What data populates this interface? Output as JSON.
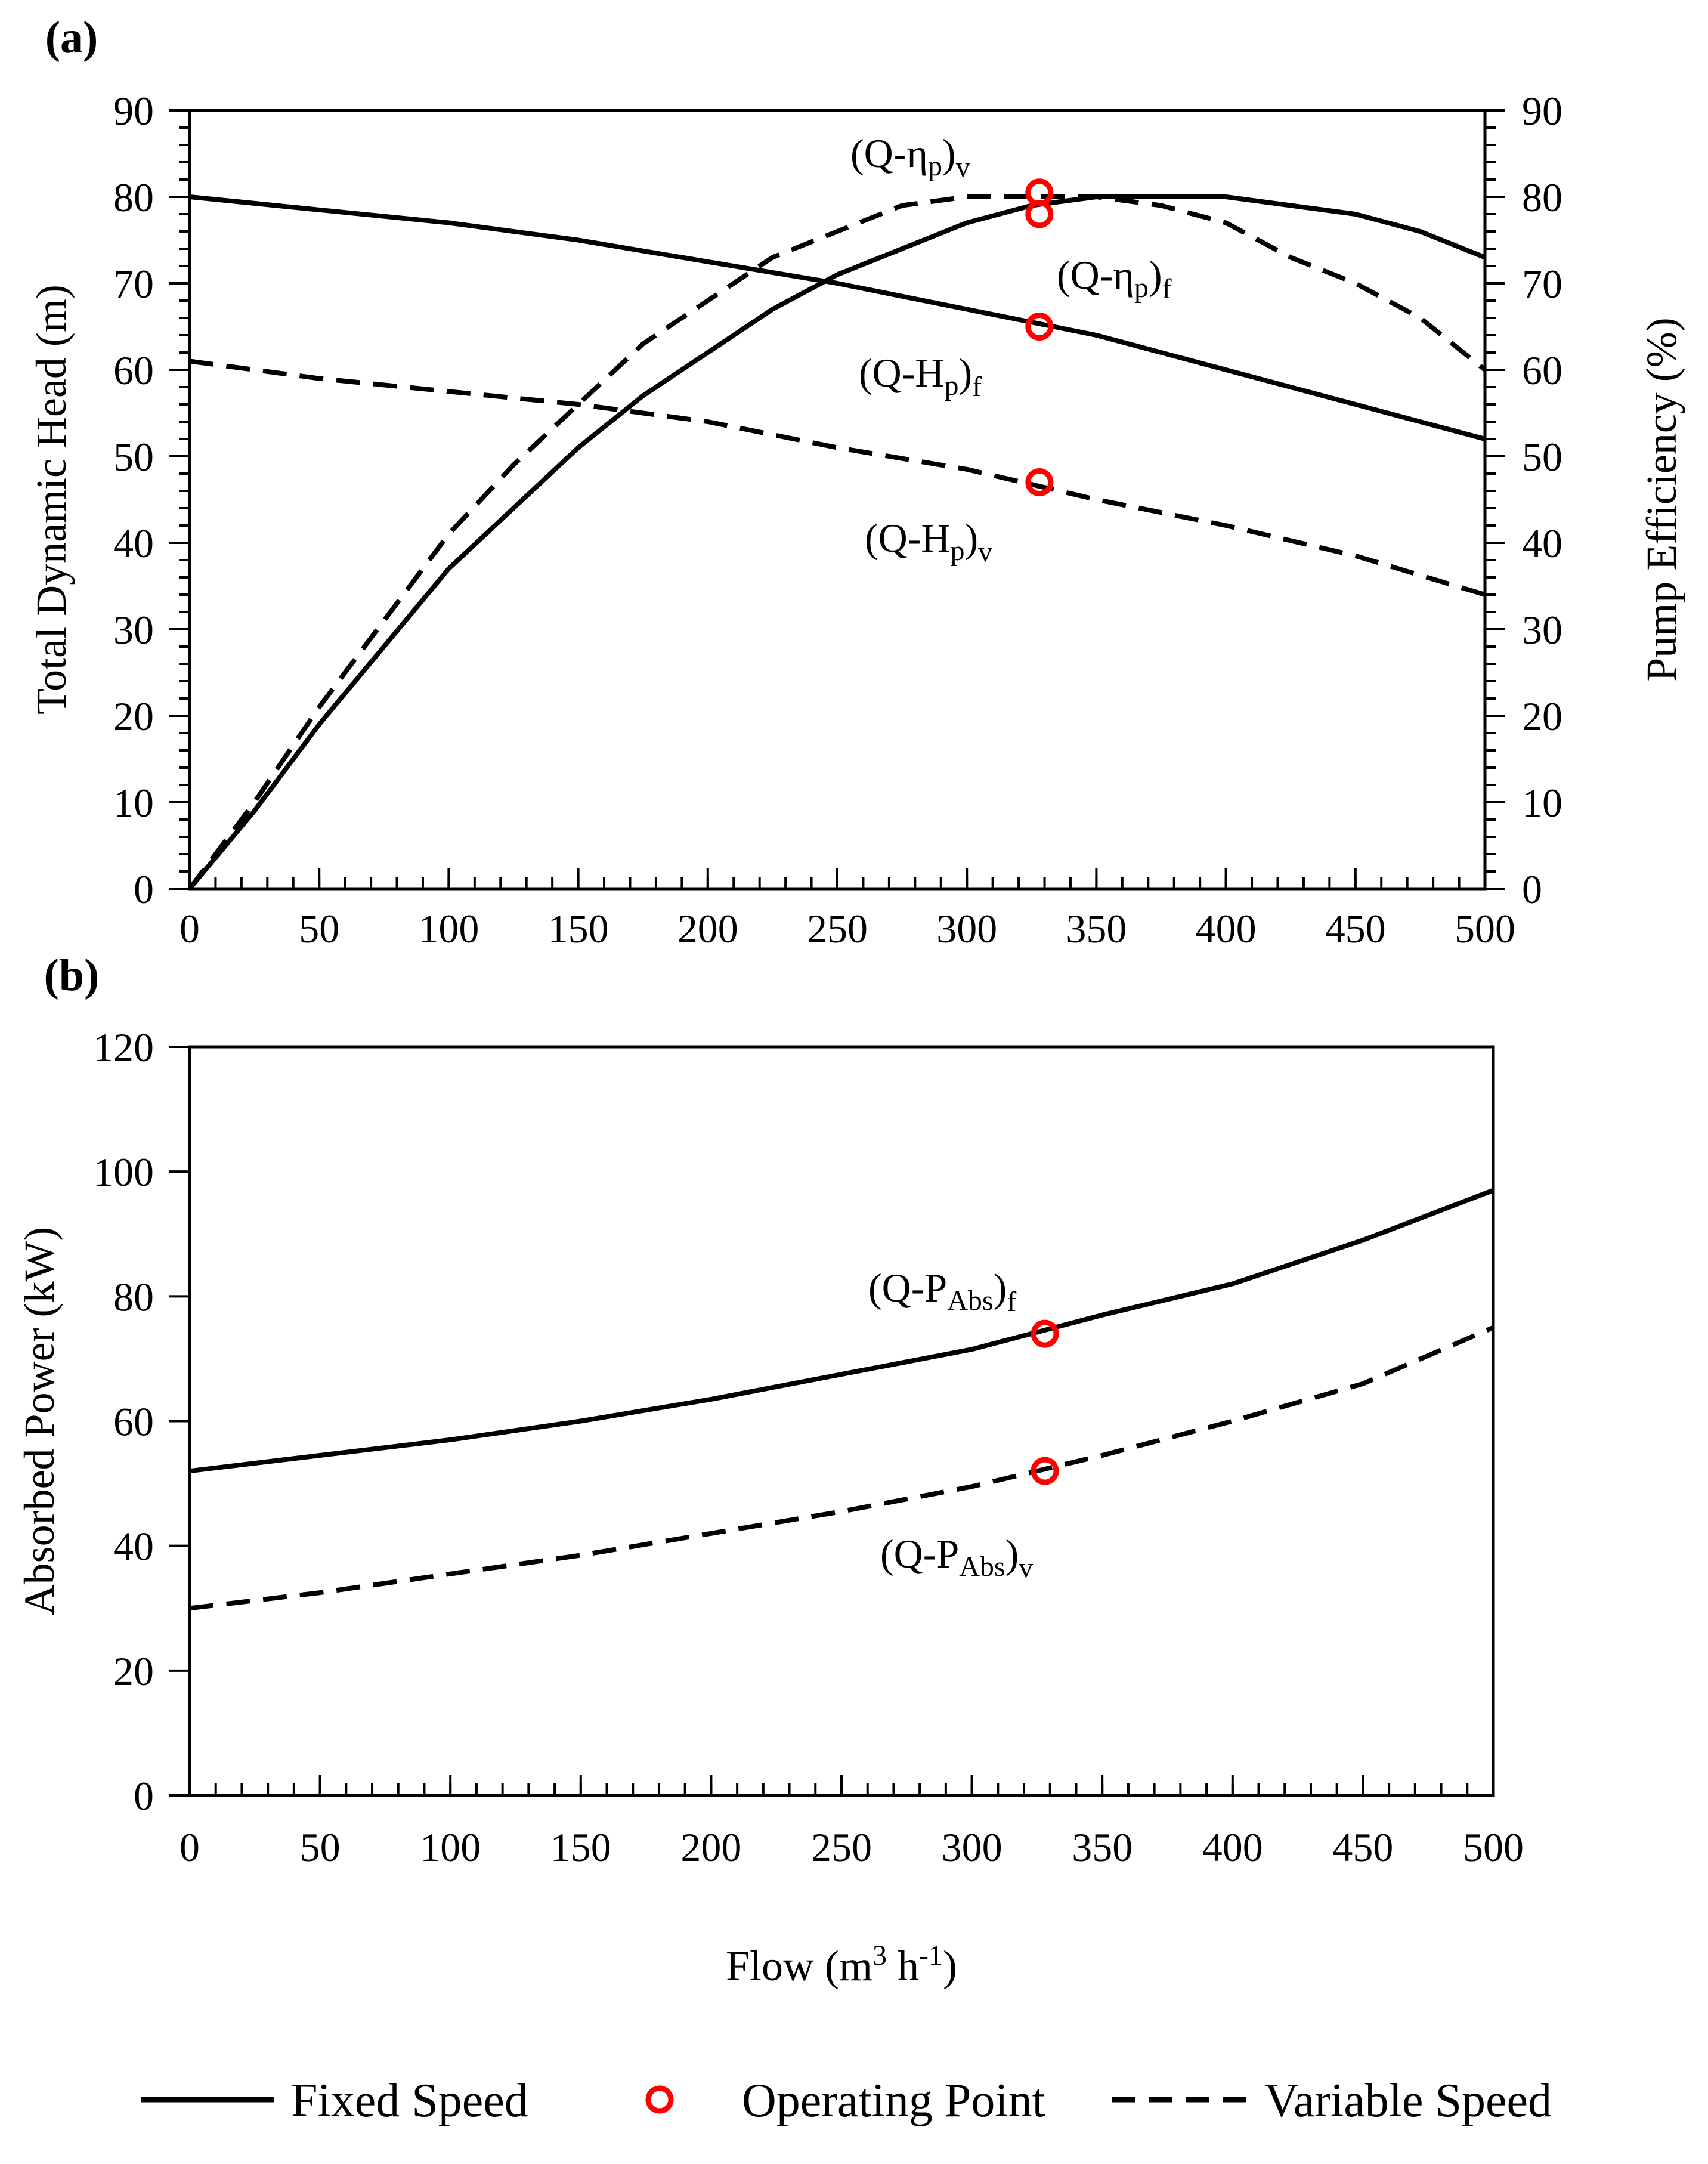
{
  "chart_data": [
    {
      "panel": "(a)",
      "type": "line",
      "title": "",
      "xlabel": "",
      "ylabel": "Total Dynamic  Head (m)",
      "y2label": "Pump Efficiency  (%)",
      "xlim": [
        0,
        500
      ],
      "ylim": [
        0,
        90
      ],
      "y2lim": [
        0,
        90
      ],
      "xticks": [
        0,
        50,
        100,
        150,
        200,
        250,
        300,
        350,
        400,
        450,
        500
      ],
      "yticks": [
        0,
        10,
        20,
        30,
        40,
        50,
        60,
        70,
        80,
        90
      ],
      "y2ticks": [
        0,
        10,
        20,
        30,
        40,
        50,
        60,
        70,
        80,
        90
      ],
      "series": [
        {
          "name": "(Q-H_p)_f",
          "label": "(Q-H",
          "sub": "p",
          "suffix": ")",
          "sub2": "f",
          "style": "solid",
          "axis": "left",
          "x": [
            0,
            50,
            100,
            150,
            200,
            250,
            300,
            350,
            400,
            450,
            500
          ],
          "y": [
            80,
            78.5,
            77,
            75,
            72.5,
            70,
            67,
            64,
            60,
            56,
            52
          ]
        },
        {
          "name": "(Q-H_p)_v",
          "label": "(Q-H",
          "sub": "p",
          "suffix": ")",
          "sub2": "v",
          "style": "dashed",
          "axis": "left",
          "x": [
            0,
            50,
            100,
            150,
            200,
            250,
            300,
            350,
            400,
            450,
            500
          ],
          "y": [
            61,
            59,
            57.5,
            56,
            54,
            51,
            48.5,
            45,
            42,
            38.5,
            34
          ]
        },
        {
          "name": "(Q-ηp)_f",
          "label": "(Q-η",
          "sub": "p",
          "suffix": ")",
          "sub2": "f",
          "style": "solid",
          "axis": "right",
          "x": [
            0,
            25,
            50,
            75,
            100,
            125,
            150,
            175,
            200,
            225,
            250,
            275,
            300,
            325,
            350,
            375,
            400,
            425,
            450,
            475,
            500
          ],
          "y": [
            0,
            9,
            19,
            28,
            37,
            44,
            51,
            57,
            62,
            67,
            71,
            74,
            77,
            79,
            80,
            80,
            80,
            79,
            78,
            76,
            73
          ]
        },
        {
          "name": "(Q-ηp)_v",
          "label": "(Q-η",
          "sub": "p",
          "suffix": ")",
          "sub2": "v",
          "style": "dashed",
          "axis": "right",
          "x": [
            0,
            25,
            50,
            75,
            100,
            125,
            150,
            175,
            200,
            225,
            250,
            275,
            300,
            325,
            350,
            375,
            400,
            425,
            450,
            475,
            500
          ],
          "y": [
            0,
            10,
            21,
            31,
            41,
            49,
            56,
            63,
            68,
            73,
            76,
            79,
            80,
            80,
            80,
            79,
            77,
            73,
            70,
            66,
            60
          ]
        }
      ],
      "operating_points": [
        {
          "series": "(Q-H_p)_f",
          "x": 328,
          "y": 65
        },
        {
          "series": "(Q-H_p)_v",
          "x": 328,
          "y": 47
        },
        {
          "series": "(Q-ηp)_f",
          "x": 328,
          "y": 78
        },
        {
          "series": "(Q-ηp)_v",
          "x": 328,
          "y": 80.5
        }
      ]
    },
    {
      "panel": "(b)",
      "type": "line",
      "title": "",
      "xlabel": "Flow (m",
      "xlabel_sup": "3",
      "xlabel_mid": " h",
      "xlabel_sup2": "-1",
      "xlabel_end": ")",
      "ylabel": "Absorbed  Power (kW)",
      "xlim": [
        0,
        500
      ],
      "ylim": [
        0,
        120
      ],
      "xticks": [
        0,
        50,
        100,
        150,
        200,
        250,
        300,
        350,
        400,
        450,
        500
      ],
      "yticks": [
        0,
        20,
        40,
        60,
        80,
        100,
        120
      ],
      "series": [
        {
          "name": "(Q-P_Abs)_f",
          "label": "(Q-P",
          "sub": "Abs",
          "suffix": ")",
          "sub2": "f",
          "style": "solid",
          "x": [
            0,
            50,
            100,
            150,
            200,
            250,
            300,
            350,
            400,
            450,
            500
          ],
          "y": [
            52,
            54.5,
            57,
            60,
            63.5,
            67.5,
            71.5,
            77,
            82,
            89,
            97
          ]
        },
        {
          "name": "(Q-P_Abs)_v",
          "label": "(Q-P",
          "sub": "Abs",
          "suffix": ")",
          "sub2": "v",
          "style": "dashed",
          "x": [
            0,
            50,
            100,
            150,
            200,
            250,
            300,
            350,
            400,
            450,
            500
          ],
          "y": [
            30,
            32.5,
            35.5,
            38.5,
            42,
            45.5,
            49.5,
            54.5,
            60,
            66,
            75
          ]
        }
      ],
      "operating_points": [
        {
          "series": "(Q-P_Abs)_f",
          "x": 328,
          "y": 74
        },
        {
          "series": "(Q-P_Abs)_v",
          "x": 328,
          "y": 52
        }
      ]
    }
  ],
  "legend": {
    "fixed": "Fixed Speed",
    "operating": "Operating Point",
    "variable": "Variable Speed"
  },
  "colors": {
    "line": "#000000",
    "operating_point": "#ff0000"
  }
}
